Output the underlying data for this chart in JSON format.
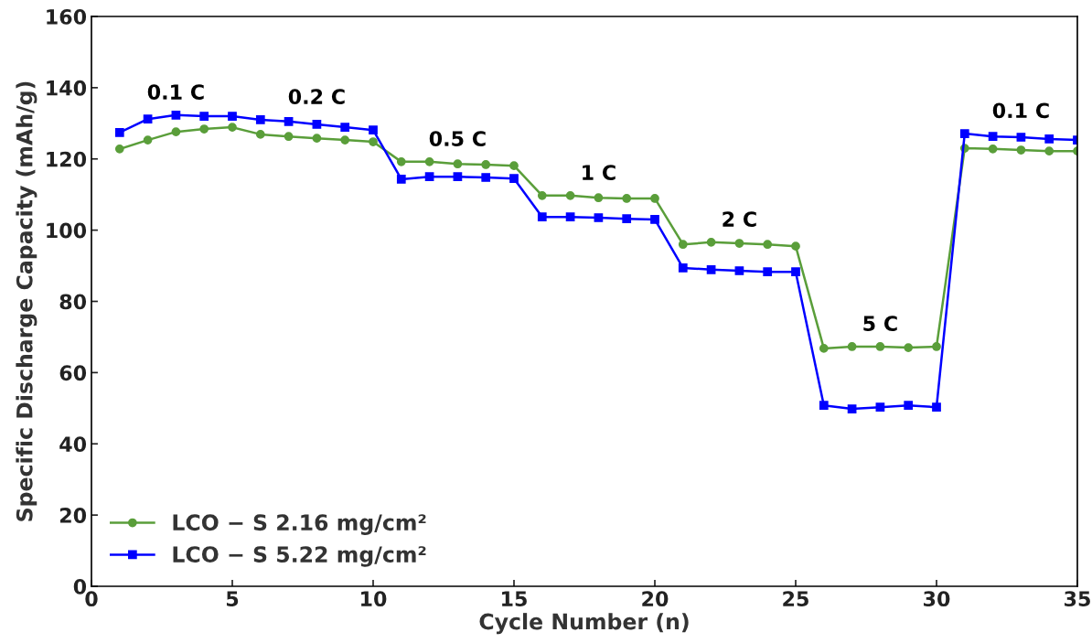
{
  "chart_data": {
    "type": "line",
    "xlabel": "Cycle Number (n)",
    "ylabel": "Specific Discharge Capacity (mAh/g)",
    "x": [
      1,
      2,
      3,
      4,
      5,
      6,
      7,
      8,
      9,
      10,
      11,
      12,
      13,
      14,
      15,
      16,
      17,
      18,
      19,
      20,
      21,
      22,
      23,
      24,
      25,
      26,
      27,
      28,
      29,
      30,
      31,
      32,
      33,
      34,
      35
    ],
    "series": [
      {
        "name": "LCO − S 2.16 mg/cm²",
        "color": "#5a9e3a",
        "marker": "circle",
        "values": [
          122.8,
          125.3,
          127.6,
          128.4,
          128.9,
          126.9,
          126.3,
          125.8,
          125.3,
          124.8,
          119.2,
          119.2,
          118.6,
          118.4,
          118.1,
          109.7,
          109.7,
          109.1,
          108.9,
          108.9,
          96.0,
          96.6,
          96.3,
          96.0,
          95.5,
          66.8,
          67.3,
          67.3,
          67.0,
          67.3,
          123.0,
          122.8,
          122.5,
          122.2,
          122.2
        ]
      },
      {
        "name": "LCO − S 5.22 mg/cm²",
        "color": "#0000ff",
        "marker": "square",
        "values": [
          127.4,
          131.2,
          132.3,
          132.0,
          132.0,
          131.0,
          130.5,
          129.7,
          128.9,
          128.1,
          114.3,
          115.0,
          115.0,
          114.8,
          114.5,
          103.7,
          103.7,
          103.5,
          103.2,
          103.0,
          89.4,
          88.9,
          88.6,
          88.3,
          88.3,
          50.8,
          49.8,
          50.3,
          50.8,
          50.3,
          127.1,
          126.3,
          126.1,
          125.6,
          125.3
        ]
      }
    ],
    "xlim": [
      0,
      35
    ],
    "xticks": [
      0,
      5,
      10,
      15,
      20,
      25,
      30,
      35
    ],
    "ylim": [
      0,
      160
    ],
    "yticks": [
      0,
      20,
      40,
      60,
      80,
      100,
      120,
      140,
      160
    ],
    "grid": false,
    "legend": "bottom left",
    "annotations": [
      "0.1 C",
      "0.2 C",
      "0.5 C",
      "1 C",
      "2 C",
      "5 C",
      "0.1 C"
    ]
  }
}
